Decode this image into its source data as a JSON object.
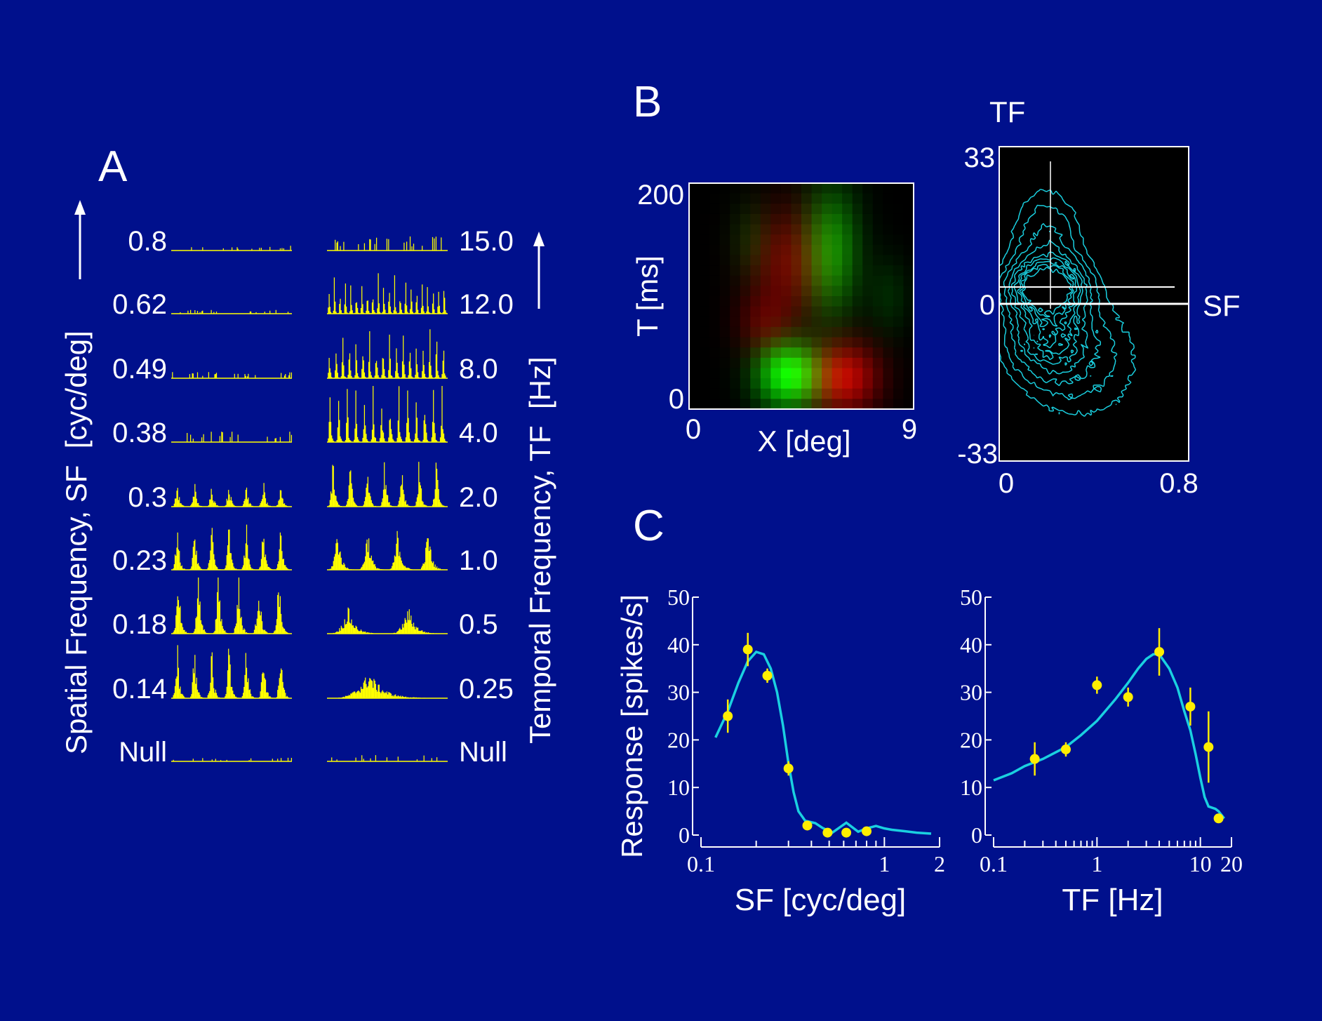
{
  "colors": {
    "background": "#00108c",
    "histogram": "#ffff00",
    "curve": "#1ad0e0",
    "points": "#ffee00",
    "contour": "#1ad0e0",
    "axis": "#ffffff"
  },
  "panel_a": {
    "label": "A",
    "sf_axis_label": "Spatial Frequency, SF  [cyc/deg]",
    "tf_axis_label": "Temporal Frequency, TF  [Hz]",
    "sf_labels": [
      "0.8",
      "0.62",
      "0.49",
      "0.38",
      "0.3",
      "0.23",
      "0.18",
      "0.14",
      "Null"
    ],
    "tf_labels": [
      "15.0",
      "12.0",
      "8.0",
      "4.0",
      "2.0",
      "1.0",
      "0.5",
      "0.25",
      "Null"
    ],
    "sf_peak_counts": [
      1,
      1,
      1,
      1,
      7,
      7,
      6,
      7,
      1
    ],
    "sf_amplitudes": [
      0.06,
      0.05,
      0.08,
      0.14,
      0.38,
      0.72,
      0.88,
      0.85,
      0.05
    ],
    "tf_peak_counts": [
      24,
      22,
      18,
      14,
      7,
      4,
      2,
      1,
      1
    ],
    "tf_amplitudes": [
      0.18,
      0.55,
      0.7,
      0.75,
      0.7,
      0.6,
      0.35,
      0.35,
      0.08
    ]
  },
  "panel_b": {
    "label": "B",
    "rf": {
      "xlabel": "X [deg]",
      "ylabel": "T [ms]",
      "x_ticks": [
        "0",
        "9"
      ],
      "y_ticks": [
        "200",
        "0"
      ]
    },
    "spectrum": {
      "top_label": "TF",
      "right_label": "SF",
      "y_ticks": [
        "33",
        "0",
        "-33"
      ],
      "x_ticks": [
        "0",
        "0.8"
      ]
    }
  },
  "panel_c": {
    "label": "C",
    "ylabel": "Response [spikes/s]"
  },
  "chart_data": [
    {
      "type": "bar",
      "panel": "A-left",
      "ylabel": "Spatial Frequency, SF  [cyc/deg]",
      "categories": [
        "0.8",
        "0.62",
        "0.49",
        "0.38",
        "0.3",
        "0.23",
        "0.18",
        "0.14",
        "Null"
      ]
    },
    {
      "type": "bar",
      "panel": "A-right",
      "ylabel": "Temporal Frequency, TF  [Hz]",
      "categories": [
        "15.0",
        "12.0",
        "8.0",
        "4.0",
        "2.0",
        "1.0",
        "0.5",
        "0.25",
        "Null"
      ]
    },
    {
      "type": "heatmap",
      "panel": "B-left",
      "xlabel": "X [deg]",
      "ylabel": "T [ms]",
      "xlim": [
        0,
        9
      ],
      "ylim": [
        0,
        200
      ],
      "blobs": [
        {
          "color": "green",
          "x": 4.0,
          "t": 30,
          "sx": 0.9,
          "st": 20,
          "amp": 1.0
        },
        {
          "color": "red",
          "x": 6.2,
          "t": 28,
          "sx": 1.0,
          "st": 22,
          "amp": 0.8
        },
        {
          "color": "red",
          "x": 4.0,
          "t": 130,
          "sx": 1.1,
          "st": 35,
          "amp": 0.45
        },
        {
          "color": "green",
          "x": 5.7,
          "t": 140,
          "sx": 0.8,
          "st": 40,
          "amp": 0.55
        },
        {
          "color": "red",
          "x": 3.0,
          "t": 75,
          "sx": 0.8,
          "st": 20,
          "amp": 0.3
        },
        {
          "color": "green",
          "x": 2.5,
          "t": 150,
          "sx": 0.6,
          "st": 25,
          "amp": 0.15
        },
        {
          "color": "green",
          "x": 8.0,
          "t": 100,
          "sx": 0.6,
          "st": 25,
          "amp": 0.15
        }
      ]
    },
    {
      "type": "heatmap",
      "panel": "B-right",
      "xlabel": "SF",
      "ylabel": "TF",
      "xlim": [
        0,
        0.8
      ],
      "ylim": [
        -33,
        33
      ],
      "peaks": [
        {
          "sf": 0.2,
          "tf": 3.5,
          "ssf": 0.1,
          "stf": 3.5,
          "amp": 1.0
        },
        {
          "sf": 0.2,
          "tf": 12,
          "ssf": 0.1,
          "stf": 8,
          "amp": 0.35
        },
        {
          "sf": 0.2,
          "tf": -6,
          "ssf": 0.11,
          "stf": 6,
          "amp": 0.55
        },
        {
          "sf": 0.35,
          "tf": -12,
          "ssf": 0.18,
          "stf": 9,
          "amp": 0.25
        }
      ],
      "contour_levels": [
        0.12,
        0.2,
        0.3,
        0.4,
        0.5,
        0.6,
        0.7,
        0.8,
        0.9
      ]
    },
    {
      "type": "line",
      "panel": "C-left",
      "xlabel": "SF [cyc/deg]",
      "ylabel": "Response [spikes/s]",
      "xscale": "log",
      "xlim": [
        0.1,
        2
      ],
      "ylim": [
        0,
        50
      ],
      "x_ticks": [
        0.1,
        1,
        2
      ],
      "y_ticks": [
        0,
        10,
        20,
        30,
        40,
        50
      ],
      "points": [
        {
          "x": 0.14,
          "y": 25,
          "err": 3.5
        },
        {
          "x": 0.18,
          "y": 39,
          "err": 3.5
        },
        {
          "x": 0.23,
          "y": 33.5,
          "err": 1.5
        },
        {
          "x": 0.3,
          "y": 14,
          "err": 1.5
        },
        {
          "x": 0.38,
          "y": 2,
          "err": 0.5
        },
        {
          "x": 0.49,
          "y": 0.5,
          "err": 0.3
        },
        {
          "x": 0.62,
          "y": 0.5,
          "err": 0.3
        },
        {
          "x": 0.8,
          "y": 0.8,
          "err": 0.3
        }
      ],
      "curve": [
        [
          0.12,
          20.5
        ],
        [
          0.14,
          26
        ],
        [
          0.16,
          32
        ],
        [
          0.18,
          36.5
        ],
        [
          0.2,
          38.5
        ],
        [
          0.22,
          38
        ],
        [
          0.24,
          35
        ],
        [
          0.26,
          30
        ],
        [
          0.28,
          23
        ],
        [
          0.3,
          15
        ],
        [
          0.32,
          9
        ],
        [
          0.34,
          5
        ],
        [
          0.37,
          3
        ],
        [
          0.42,
          2.5
        ],
        [
          0.46,
          1.5
        ],
        [
          0.52,
          0.5
        ],
        [
          0.58,
          1.8
        ],
        [
          0.62,
          2.6
        ],
        [
          0.66,
          1.8
        ],
        [
          0.72,
          0.7
        ],
        [
          0.8,
          1.4
        ],
        [
          0.9,
          1.9
        ],
        [
          1.0,
          1.4
        ],
        [
          1.1,
          1.1
        ],
        [
          1.3,
          0.8
        ],
        [
          1.5,
          0.5
        ],
        [
          1.8,
          0.3
        ]
      ]
    },
    {
      "type": "line",
      "panel": "C-right",
      "xlabel": "TF [Hz]",
      "ylabel": "Response [spikes/s]",
      "xscale": "log",
      "xlim": [
        0.1,
        20
      ],
      "ylim": [
        0,
        50
      ],
      "x_ticks": [
        0.1,
        1,
        10,
        20
      ],
      "y_ticks": [
        0,
        10,
        20,
        30,
        40,
        50
      ],
      "points": [
        {
          "x": 0.25,
          "y": 16,
          "err": 3.5
        },
        {
          "x": 0.5,
          "y": 18,
          "err": 1.5
        },
        {
          "x": 1,
          "y": 31.5,
          "err": 1.8
        },
        {
          "x": 2,
          "y": 29,
          "err": 2.0
        },
        {
          "x": 4,
          "y": 38.5,
          "err": 5.0
        },
        {
          "x": 8,
          "y": 27,
          "err": 4.0
        },
        {
          "x": 12,
          "y": 18.5,
          "err": 7.5
        },
        {
          "x": 15,
          "y": 3.5,
          "err": 0.5
        }
      ],
      "curve": [
        [
          0.1,
          11.5
        ],
        [
          0.15,
          13
        ],
        [
          0.2,
          14.5
        ],
        [
          0.3,
          16
        ],
        [
          0.5,
          18.5
        ],
        [
          0.7,
          21
        ],
        [
          1.0,
          24
        ],
        [
          1.5,
          28.5
        ],
        [
          2.0,
          32
        ],
        [
          2.5,
          35
        ],
        [
          3.0,
          37
        ],
        [
          3.5,
          38
        ],
        [
          4.0,
          38
        ],
        [
          5.0,
          35
        ],
        [
          6.0,
          31
        ],
        [
          7.0,
          26
        ],
        [
          8.0,
          22
        ],
        [
          9.0,
          17
        ],
        [
          10.0,
          12
        ],
        [
          11.0,
          8
        ],
        [
          12.0,
          6
        ],
        [
          14.0,
          5.5
        ],
        [
          15.0,
          5
        ],
        [
          17.0,
          3.5
        ]
      ]
    }
  ]
}
